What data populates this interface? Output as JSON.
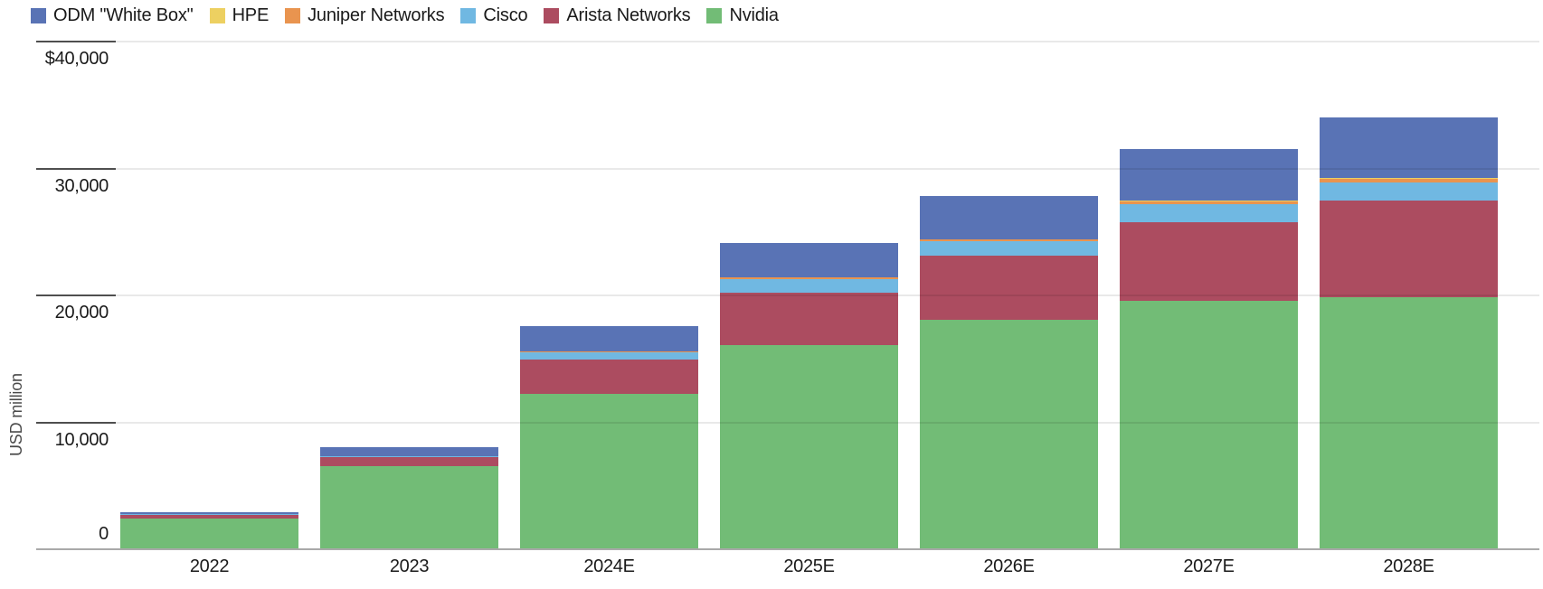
{
  "chart_data": {
    "type": "bar",
    "stacked": true,
    "title": "",
    "ylabel": "USD million",
    "xlabel": "",
    "ylim": [
      0,
      40000
    ],
    "grid": true,
    "legend_position": "top-left",
    "categories": [
      "2022",
      "2023",
      "2024E",
      "2025E",
      "2026E",
      "2027E",
      "2028E"
    ],
    "yticks": [
      {
        "value": 40000,
        "label": "$40,000"
      },
      {
        "value": 30000,
        "label": "30,000"
      },
      {
        "value": 20000,
        "label": "20,000"
      },
      {
        "value": 10000,
        "label": "10,000"
      },
      {
        "value": 0,
        "label": "0"
      }
    ],
    "series": [
      {
        "name": "Nvidia",
        "color": "#72bc76",
        "values": [
          2450,
          6550,
          12250,
          16100,
          18100,
          19600,
          19850
        ]
      },
      {
        "name": "Arista Networks",
        "color": "#ac4c60",
        "values": [
          250,
          700,
          2700,
          4100,
          5000,
          6200,
          7600
        ]
      },
      {
        "name": "Cisco",
        "color": "#70b8e2",
        "values": [
          50,
          80,
          600,
          1050,
          1150,
          1400,
          1450
        ]
      },
      {
        "name": "Juniper Networks",
        "color": "#e9944f",
        "values": [
          0,
          0,
          50,
          150,
          150,
          200,
          250
        ]
      },
      {
        "name": "HPE",
        "color": "#edd061",
        "values": [
          0,
          0,
          0,
          50,
          50,
          50,
          100
        ]
      },
      {
        "name": "ODM \"White Box\"",
        "color": "#5973b5",
        "values": [
          200,
          700,
          1950,
          2700,
          3400,
          4100,
          4800
        ]
      }
    ],
    "legend_order_left_to_right": [
      "ODM \"White Box\"",
      "HPE",
      "Juniper Networks",
      "Cisco",
      "Arista Networks",
      "Nvidia"
    ]
  }
}
